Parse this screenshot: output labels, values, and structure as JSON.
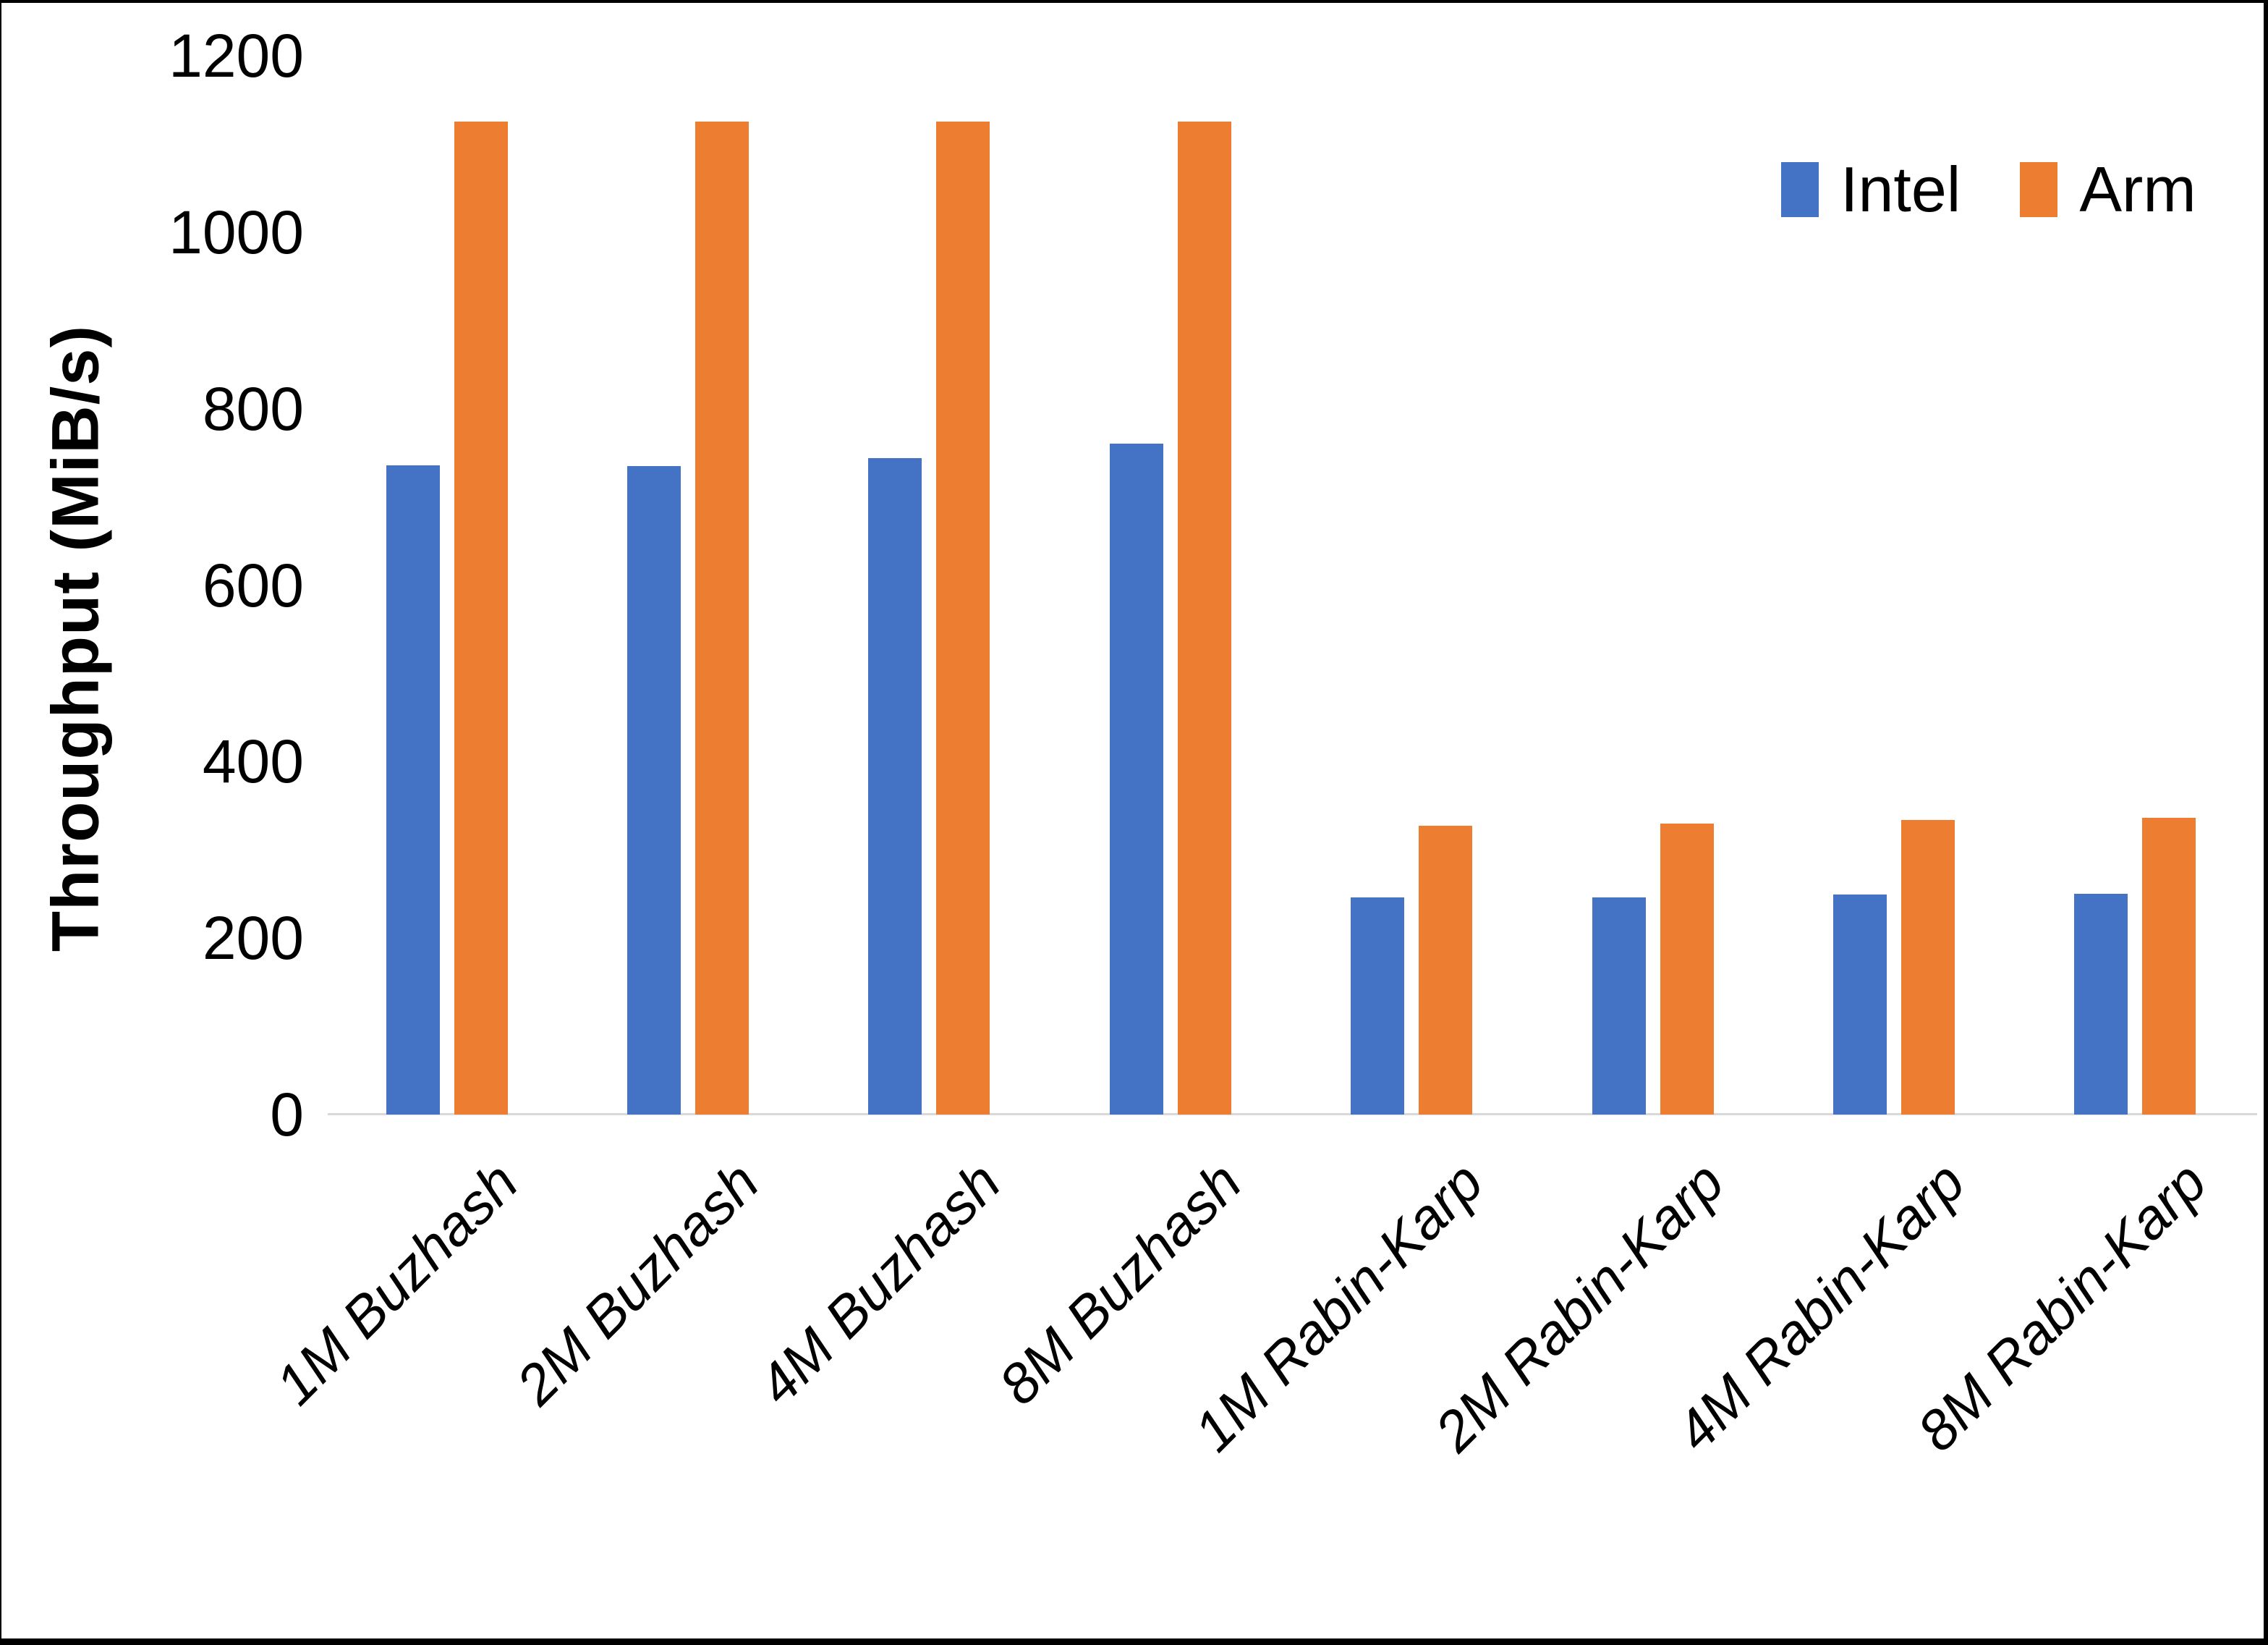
{
  "chart_data": {
    "type": "bar",
    "title": "",
    "xlabel": "",
    "ylabel": "Throughput (MiB/s)",
    "categories": [
      "1M Buzhash",
      "2M Buzhash",
      "4M Buzhash",
      "8M Buzhash",
      "1M Rabin-Karp",
      "2M Rabin-Karp",
      "4M Rabin-Karp",
      "8M Rabin-Karp"
    ],
    "series": [
      {
        "name": "Intel",
        "color": "#4472C4",
        "values": [
          736,
          735,
          744,
          760,
          246,
          246,
          249,
          250
        ]
      },
      {
        "name": "Arm",
        "color": "#ED7D31",
        "values": [
          1125,
          1125,
          1125,
          1125,
          327,
          330,
          334,
          336
        ]
      }
    ],
    "ylim": [
      0,
      1200
    ],
    "yticks": [
      0,
      200,
      400,
      600,
      800,
      1000,
      1200
    ],
    "grid": false,
    "legend_position": "top-right",
    "colors": {
      "axis_line": "#D9D9D9",
      "text": "#000000",
      "background": "#FFFFFF",
      "frame_border": "#000000"
    }
  }
}
